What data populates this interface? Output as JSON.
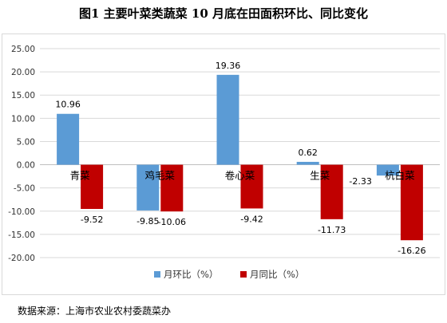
{
  "title": "图1  主要叶菜类蔬菜 10 月底在田面积环比、同比变化",
  "source": "数据来源：上海市农业农村委蔬菜办",
  "chart_data": {
    "type": "bar",
    "categories": [
      "青菜",
      "鸡毛菜",
      "卷心菜",
      "生菜",
      "杭白菜"
    ],
    "series": [
      {
        "name": "月环比（%）",
        "color": "#5b9bd5",
        "values": [
          10.96,
          -9.85,
          19.36,
          0.62,
          -2.33
        ]
      },
      {
        "name": "月同比（%）",
        "color": "#c00000",
        "values": [
          -9.52,
          -10.06,
          -9.42,
          -11.73,
          -16.26
        ]
      }
    ],
    "ylim": [
      -20,
      25
    ],
    "yticks": [
      "-20.00",
      "-15.00",
      "-10.00",
      "-5.00",
      "0.00",
      "5.00",
      "10.00",
      "15.00",
      "20.00",
      "25.00"
    ],
    "grid": true,
    "legend": "bottom"
  }
}
